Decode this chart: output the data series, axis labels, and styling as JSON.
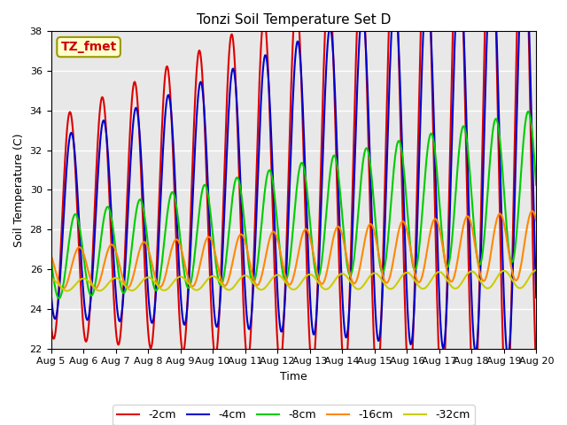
{
  "title": "Tonzi Soil Temperature Set D",
  "xlabel": "Time",
  "ylabel": "Soil Temperature (C)",
  "ylim": [
    22,
    38
  ],
  "series_labels": [
    "-2cm",
    "-4cm",
    "-8cm",
    "-16cm",
    "-32cm"
  ],
  "series_colors": [
    "#dd0000",
    "#0000cc",
    "#00cc00",
    "#ff8800",
    "#cccc00"
  ],
  "series_linewidths": [
    1.5,
    1.5,
    1.5,
    1.5,
    1.5
  ],
  "annotation_text": "TZ_fmet",
  "annotation_color": "#cc0000",
  "annotation_bg": "#ffffcc",
  "annotation_border": "#999900",
  "tick_dates": [
    "Aug 5",
    "Aug 6",
    "Aug 7",
    "Aug 8",
    "Aug 9",
    "Aug 10",
    "Aug 11",
    "Aug 12",
    "Aug 13",
    "Aug 14",
    "Aug 15",
    "Aug 16",
    "Aug 17",
    "Aug 18",
    "Aug 19",
    "Aug 20"
  ],
  "bg_color": "#e8e8e8",
  "fig_bg_color": "#ffffff",
  "grid_color": "#ffffff",
  "days": 15
}
